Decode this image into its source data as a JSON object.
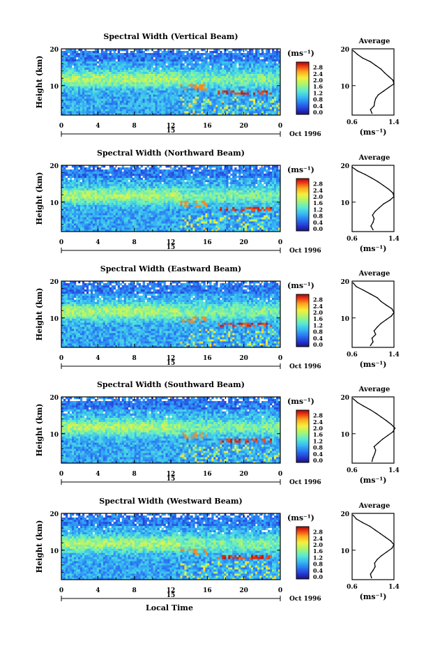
{
  "chart_data": [
    {
      "type": "heatmap",
      "title": "Spectral Width (Vertical Beam)",
      "ylabel": "Height (km)",
      "date_label": "Oct 1996",
      "day_label": "15",
      "x_ticks": [
        "0",
        "4",
        "8",
        "12",
        "16",
        "20",
        "0"
      ],
      "xlim": [
        0,
        24
      ],
      "y_ticks": [
        "20",
        "10"
      ],
      "ylim": [
        2,
        20
      ],
      "colorbar_unit": "(ms⁻¹)",
      "colorbar_ticks": [
        "2.8",
        "2.4",
        "2.0",
        "1.6",
        "1.2",
        "0.8",
        "0.4",
        "0.0"
      ],
      "colorbar_range": [
        0.0,
        3.0
      ],
      "profile": {
        "title": "Average",
        "xlabel": "(ms⁻¹)",
        "x_ticks": [
          "0.6",
          "1.4"
        ],
        "xlim": [
          0.6,
          1.4
        ],
        "y_ticks": [
          "20",
          "10"
        ],
        "ylim": [
          2,
          20
        ],
        "heights": [
          2.5,
          3.5,
          4.5,
          5.5,
          6.5,
          7.5,
          8.5,
          9.5,
          10.5,
          11.5,
          12.5,
          13.5,
          14.5,
          15.5,
          16.5,
          17.5,
          18.5,
          19.5
        ],
        "values": [
          0.98,
          0.95,
          1.02,
          1.03,
          1.05,
          1.1,
          1.2,
          1.3,
          1.4,
          1.38,
          1.3,
          1.22,
          1.15,
          1.05,
          0.95,
          0.8,
          0.7,
          0.62
        ]
      }
    },
    {
      "type": "heatmap",
      "title": "Spectral Width (Northward Beam)",
      "ylabel": "Height (km)",
      "date_label": "Oct 1996",
      "day_label": "15",
      "x_ticks": [
        "0",
        "4",
        "8",
        "12",
        "16",
        "20",
        "0"
      ],
      "xlim": [
        0,
        24
      ],
      "y_ticks": [
        "20",
        "10"
      ],
      "ylim": [
        2,
        20
      ],
      "colorbar_unit": "(ms⁻¹)",
      "colorbar_ticks": [
        "2.8",
        "2.4",
        "2.0",
        "1.6",
        "1.2",
        "0.8",
        "0.4",
        "0.0"
      ],
      "colorbar_range": [
        0.0,
        3.0
      ],
      "profile": {
        "title": "Average",
        "xlabel": "(ms⁻¹)",
        "x_ticks": [
          "0.6",
          "1.4"
        ],
        "xlim": [
          0.6,
          1.4
        ],
        "y_ticks": [
          "20",
          "10"
        ],
        "ylim": [
          2,
          20
        ],
        "heights": [
          2.5,
          3.5,
          4.5,
          5.5,
          6.5,
          7.5,
          8.5,
          9.5,
          10.5,
          11.5,
          12.5,
          13.5,
          14.5,
          15.5,
          16.5,
          17.5,
          18.5,
          19.5
        ],
        "values": [
          1.0,
          0.96,
          1.0,
          1.02,
          0.99,
          1.04,
          1.12,
          1.2,
          1.32,
          1.4,
          1.38,
          1.3,
          1.2,
          1.1,
          0.98,
          0.85,
          0.7,
          0.6
        ]
      }
    },
    {
      "type": "heatmap",
      "title": "Spectral Width (Eastward Beam)",
      "ylabel": "Height (km)",
      "date_label": "Oct 1996",
      "day_label": "15",
      "x_ticks": [
        "0",
        "4",
        "8",
        "12",
        "16",
        "20",
        "0"
      ],
      "xlim": [
        0,
        24
      ],
      "y_ticks": [
        "20",
        "10"
      ],
      "ylim": [
        2,
        20
      ],
      "colorbar_unit": "(ms⁻¹)",
      "colorbar_ticks": [
        "2.8",
        "2.4",
        "2.0",
        "1.6",
        "1.2",
        "0.8",
        "0.4",
        "0.0"
      ],
      "colorbar_range": [
        0.0,
        3.0
      ],
      "profile": {
        "title": "Average",
        "xlabel": "(ms⁻¹)",
        "x_ticks": [
          "0.6",
          "1.4"
        ],
        "xlim": [
          0.6,
          1.4
        ],
        "y_ticks": [
          "20",
          "10"
        ],
        "ylim": [
          2,
          20
        ],
        "heights": [
          2.5,
          3.5,
          4.5,
          5.5,
          6.5,
          7.5,
          8.5,
          9.5,
          10.5,
          11.5,
          12.5,
          13.5,
          14.5,
          15.5,
          16.5,
          17.5,
          18.5,
          19.5
        ],
        "values": [
          0.95,
          1.0,
          0.98,
          1.05,
          1.02,
          1.08,
          1.15,
          1.25,
          1.35,
          1.4,
          1.36,
          1.25,
          1.15,
          1.08,
          0.95,
          0.82,
          0.68,
          0.62
        ]
      }
    },
    {
      "type": "heatmap",
      "title": "Spectral Width (Southward Beam)",
      "ylabel": "Height (km)",
      "date_label": "Oct 1996",
      "day_label": "15",
      "x_ticks": [
        "0",
        "4",
        "8",
        "12",
        "16",
        "20",
        "0"
      ],
      "xlim": [
        0,
        24
      ],
      "y_ticks": [
        "20",
        "10"
      ],
      "ylim": [
        2,
        20
      ],
      "colorbar_unit": "(ms⁻¹)",
      "colorbar_ticks": [
        "2.8",
        "2.4",
        "2.0",
        "1.6",
        "1.2",
        "0.8",
        "0.4",
        "0.0"
      ],
      "colorbar_range": [
        0.0,
        3.0
      ],
      "profile": {
        "title": "Average",
        "xlabel": "(ms⁻¹)",
        "x_ticks": [
          "0.6",
          "1.4"
        ],
        "xlim": [
          0.6,
          1.4
        ],
        "y_ticks": [
          "20",
          "10"
        ],
        "ylim": [
          2,
          20
        ],
        "heights": [
          2.5,
          3.5,
          4.5,
          5.5,
          6.5,
          7.5,
          8.5,
          9.5,
          10.5,
          11.5,
          12.5,
          13.5,
          14.5,
          15.5,
          16.5,
          17.5,
          18.5,
          19.5
        ],
        "values": [
          0.98,
          1.0,
          1.03,
          1.05,
          1.02,
          1.1,
          1.18,
          1.28,
          1.38,
          1.42,
          1.35,
          1.26,
          1.16,
          1.06,
          0.95,
          0.82,
          0.7,
          0.62
        ]
      }
    },
    {
      "type": "heatmap",
      "title": "Spectral Width (Westward Beam)",
      "ylabel": "Height (km)",
      "date_label": "Oct 1996",
      "day_label": "15",
      "x_ticks": [
        "0",
        "4",
        "8",
        "12",
        "16",
        "20",
        "0"
      ],
      "xlim": [
        0,
        24
      ],
      "y_ticks": [
        "20",
        "10"
      ],
      "ylim": [
        2,
        20
      ],
      "xlabel": "Local Time",
      "colorbar_unit": "(ms⁻¹)",
      "colorbar_ticks": [
        "2.8",
        "2.4",
        "2.0",
        "1.6",
        "1.2",
        "0.8",
        "0.4",
        "0.0"
      ],
      "colorbar_range": [
        0.0,
        3.0
      ],
      "profile": {
        "title": "Average",
        "xlabel": "(ms⁻¹)",
        "x_ticks": [
          "0.6",
          "1.4"
        ],
        "xlim": [
          0.6,
          1.4
        ],
        "y_ticks": [
          "20",
          "10"
        ],
        "ylim": [
          2,
          20
        ],
        "heights": [
          2.5,
          3.5,
          4.5,
          5.5,
          6.5,
          7.5,
          8.5,
          9.5,
          10.5,
          11.5,
          12.5,
          13.5,
          14.5,
          15.5,
          16.5,
          17.5,
          18.5,
          19.5
        ],
        "values": [
          0.97,
          0.95,
          1.0,
          1.04,
          1.03,
          1.08,
          1.16,
          1.26,
          1.36,
          1.4,
          1.34,
          1.24,
          1.14,
          1.04,
          0.94,
          0.8,
          0.68,
          0.62
        ]
      }
    }
  ]
}
